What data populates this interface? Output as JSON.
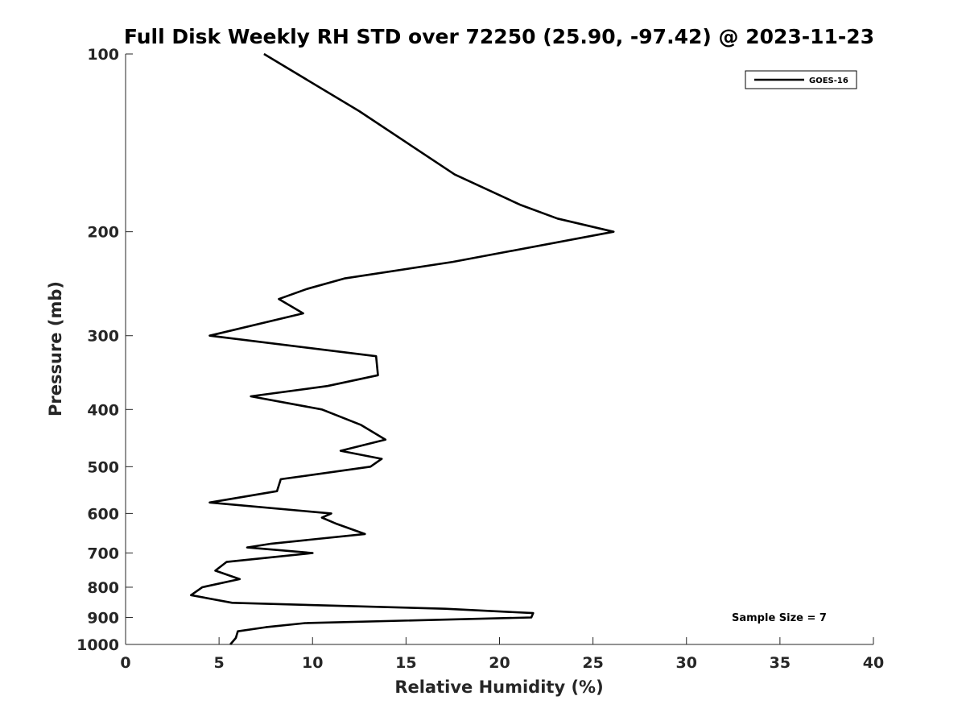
{
  "chart_data": {
    "type": "line",
    "title": "Full Disk Weekly RH STD over 72250 (25.90, -97.42) @ 2023-11-23",
    "xlabel": "Relative Humidity (%)",
    "ylabel": "Pressure (mb)",
    "xlim": [
      0,
      40
    ],
    "ylim": [
      100,
      1000
    ],
    "y_scale": "log",
    "y_reversed": true,
    "xticks": [
      0,
      5,
      10,
      15,
      20,
      25,
      30,
      35,
      40
    ],
    "yticks": [
      100,
      200,
      300,
      400,
      500,
      600,
      700,
      800,
      900,
      1000
    ],
    "grid": false,
    "legend_position": "top-right",
    "series": [
      {
        "name": "GOES-16",
        "color": "#000000",
        "points": [
          [
            7.4,
            100
          ],
          [
            12.5,
            125
          ],
          [
            17.6,
            160
          ],
          [
            21.1,
            180
          ],
          [
            23.1,
            190
          ],
          [
            26.1,
            200
          ],
          [
            17.5,
            225
          ],
          [
            11.7,
            240
          ],
          [
            9.7,
            250
          ],
          [
            8.2,
            260
          ],
          [
            9.5,
            275
          ],
          [
            4.5,
            300
          ],
          [
            13.4,
            325
          ],
          [
            13.5,
            350
          ],
          [
            10.8,
            365
          ],
          [
            6.7,
            380
          ],
          [
            10.5,
            400
          ],
          [
            12.6,
            425
          ],
          [
            13.9,
            450
          ],
          [
            11.5,
            470
          ],
          [
            13.7,
            485
          ],
          [
            13.1,
            500
          ],
          [
            8.3,
            525
          ],
          [
            8.1,
            550
          ],
          [
            4.5,
            575
          ],
          [
            11.0,
            600
          ],
          [
            10.5,
            610
          ],
          [
            11.3,
            625
          ],
          [
            12.8,
            650
          ],
          [
            7.8,
            675
          ],
          [
            6.5,
            685
          ],
          [
            10.0,
            700
          ],
          [
            5.4,
            725
          ],
          [
            4.8,
            750
          ],
          [
            6.1,
            775
          ],
          [
            4.1,
            800
          ],
          [
            3.5,
            825
          ],
          [
            5.7,
            850
          ],
          [
            17.1,
            870
          ],
          [
            21.8,
            885
          ],
          [
            21.7,
            900
          ],
          [
            9.6,
            920
          ],
          [
            7.5,
            935
          ],
          [
            6.0,
            950
          ],
          [
            5.9,
            975
          ],
          [
            5.6,
            1000
          ]
        ]
      }
    ],
    "annotation": "Sample Size = 7"
  }
}
